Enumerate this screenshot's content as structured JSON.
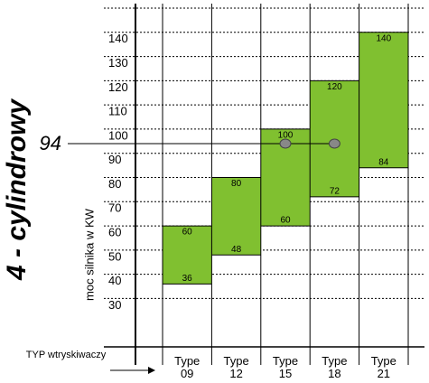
{
  "chart_data": {
    "type": "range-bar",
    "title": "4 - cylindrowy",
    "y_label": "moc silnika w KW",
    "x_label": "TYP wtryskiwaczy",
    "categories": [
      "Type 09",
      "Type 12",
      "Type 15",
      "Type 18",
      "Type 21"
    ],
    "low": [
      36,
      48,
      60,
      72,
      84
    ],
    "high": [
      60,
      80,
      100,
      120,
      140
    ],
    "color": "#80c030",
    "ylim": [
      10,
      150
    ],
    "yticks": [
      30,
      40,
      50,
      60,
      70,
      80,
      90,
      100,
      110,
      120,
      130,
      140
    ],
    "grid": true,
    "reference": {
      "value": 94,
      "categories": [
        "Type 15",
        "Type 18"
      ]
    }
  }
}
